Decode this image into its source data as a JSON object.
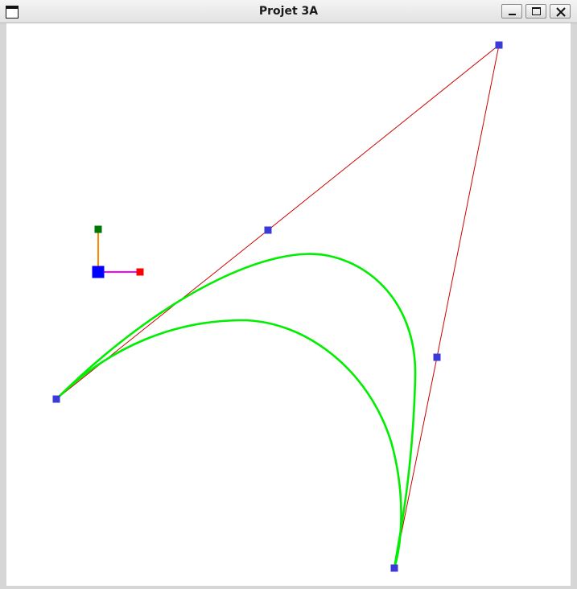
{
  "window": {
    "title": "Projet 3A",
    "icon": "window-icon",
    "controls": [
      "minimize-icon",
      "maximize-icon",
      "close-icon"
    ]
  },
  "scene": {
    "colors": {
      "control_polygon": "#cc0000",
      "curve": "#00ee00",
      "control_point": "#3a3ad8",
      "gizmo_origin": "#0000ff",
      "gizmo_x_axis": "#ff00ff",
      "gizmo_x_handle": "#ff0000",
      "gizmo_y_axis": "#ff8800",
      "gizmo_y_handle": "#007700"
    }
  }
}
